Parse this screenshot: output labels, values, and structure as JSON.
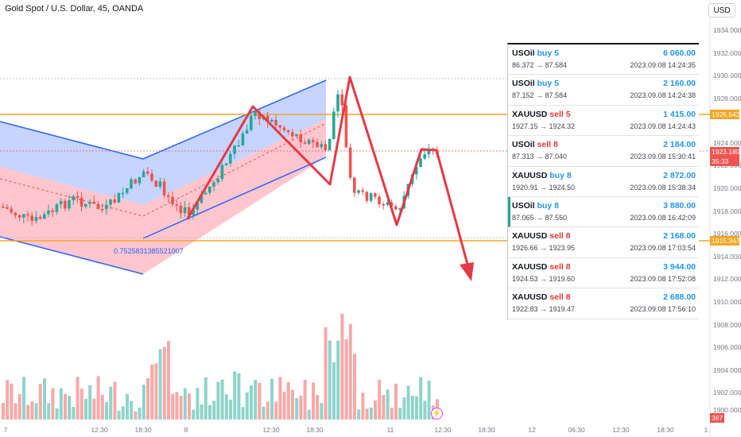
{
  "header": {
    "title": "Gold Spot / U.S. Dollar, 45, OANDA",
    "currency_button": "USD"
  },
  "price_axis": [
    "1934.000",
    "1932.000",
    "1930.000",
    "1928.000",
    "1924.000",
    "1922.000",
    "1920.000",
    "1918.000",
    "1916.000",
    "1914.000",
    "1912.000",
    "1910.000",
    "1908.000",
    "1906.000",
    "1904.000",
    "1902.000",
    "1900.000"
  ],
  "price_badges": {
    "resistance": "1926.542",
    "current": "1923.180",
    "countdown": "35:33",
    "support": "1915.347",
    "volume": "367"
  },
  "time_axis": [
    "7",
    "12:30",
    "18:30",
    "8",
    "12:30",
    "18:30",
    "11",
    "12:30",
    "18:30",
    "12",
    "06:30",
    "12:30",
    "18:30",
    "1"
  ],
  "channel_label": "0.7525831385521007",
  "trades": [
    {
      "symbol": "USOil",
      "side": "buy",
      "qty": "5",
      "amount": "6 060.00",
      "open": "86.372",
      "close": "87.584",
      "time": "2023.09.08 14:24:35"
    },
    {
      "symbol": "USOil",
      "side": "buy",
      "qty": "5",
      "amount": "2 160.00",
      "open": "87.152",
      "close": "87.584",
      "time": "2023.09.08 14:24:38"
    },
    {
      "symbol": "XAUUSD",
      "side": "sell",
      "qty": "5",
      "amount": "1 415.00",
      "open": "1927.15",
      "close": "1924.32",
      "time": "2023.09.08 14:24:43"
    },
    {
      "symbol": "USOil",
      "side": "sell",
      "qty": "8",
      "amount": "2 184.00",
      "open": "87.313",
      "close": "87.040",
      "time": "2023.09.08 15:30:41"
    },
    {
      "symbol": "XAUUSD",
      "side": "buy",
      "qty": "8",
      "amount": "2 872.00",
      "open": "1920.91",
      "close": "1924.50",
      "time": "2023.09.08 15:38:34"
    },
    {
      "symbol": "USOil",
      "side": "buy",
      "qty": "8",
      "amount": "3 880.00",
      "open": "87.065",
      "close": "87.550",
      "time": "2023.09.08 16:42:09"
    },
    {
      "symbol": "XAUUSD",
      "side": "sell",
      "qty": "8",
      "amount": "2 168.00",
      "open": "1926.66",
      "close": "1923.95",
      "time": "2023.09.08 17:03:54"
    },
    {
      "symbol": "XAUUSD",
      "side": "sell",
      "qty": "8",
      "amount": "3 944.00",
      "open": "1924.53",
      "close": "1919.60",
      "time": "2023.09.08 17:52:08"
    },
    {
      "symbol": "XAUUSD",
      "side": "sell",
      "qty": "8",
      "amount": "2 688.00",
      "open": "1922.83",
      "close": "1919.47",
      "time": "2023.09.08 17:56:10"
    }
  ],
  "colors": {
    "up": "#26a69a",
    "down": "#ef5350",
    "level": "#f5a623",
    "arrow": "#e53945",
    "channel": "#2962ff"
  }
}
